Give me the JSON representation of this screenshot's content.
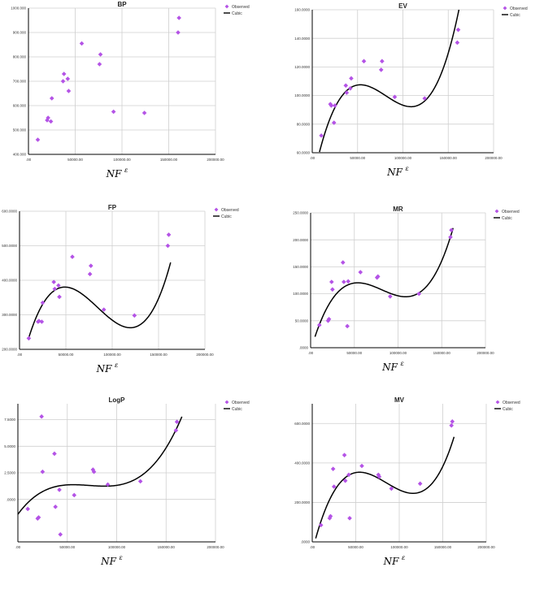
{
  "legend": {
    "observed_label": "Observed",
    "fit_label": "Cubic",
    "marker_color": "#b453e6",
    "line_color": "#000000"
  },
  "x_axis_label": "NF",
  "x_axis_superscript": "ε",
  "chart_data": [
    {
      "type": "scatter",
      "title": "BP",
      "xlim": [
        0,
        200000
      ],
      "ylim": [
        400,
        1000
      ],
      "xticks": [
        0,
        50000,
        100000,
        150000,
        200000
      ],
      "xtick_labels": [
        ".00",
        "50000.00",
        "100000.00",
        "150000.00",
        "200000.00"
      ],
      "yticks": [
        400,
        500,
        600,
        700,
        800,
        900,
        1000
      ],
      "ytick_labels": [
        "400.000",
        "500.000",
        "600.000",
        "700.000",
        "800.000",
        "900.000",
        "1000.000"
      ],
      "series": [
        {
          "name": "Observed",
          "x": [
            10000,
            20000,
            21000,
            24000,
            25000,
            37000,
            38000,
            42000,
            43000,
            57000,
            76000,
            77000,
            91000,
            124000,
            160000,
            161000
          ],
          "y": [
            460,
            540,
            550,
            535,
            630,
            700,
            730,
            710,
            660,
            855,
            770,
            810,
            575,
            570,
            900,
            960
          ]
        },
        {
          "name": "Cubic",
          "fit": "cubic",
          "x_range": [
            10000,
            163000
          ],
          "coefficients": [
            -0.01052,
            0.000262,
            -1.87e-09,
            4.04e-15
          ]
        }
      ]
    },
    {
      "type": "scatter",
      "title": "EV",
      "xlim": [
        0,
        200000
      ],
      "ylim": [
        60,
        160
      ],
      "xticks": [
        0,
        50000,
        100000,
        150000,
        200000
      ],
      "xtick_labels": [
        ".00",
        "50000.00",
        "100000.00",
        "150000.00",
        "200000.00"
      ],
      "yticks": [
        60,
        80,
        100,
        120,
        140,
        160
      ],
      "ytick_labels": [
        "60.0000",
        "80.0000",
        "100.0000",
        "120.0000",
        "140.0000",
        "160.0000"
      ],
      "series": [
        {
          "name": "Observed",
          "x": [
            10000,
            20000,
            21000,
            24000,
            25000,
            37000,
            38000,
            42000,
            43000,
            57000,
            76000,
            77000,
            91000,
            124000,
            160000,
            161000
          ],
          "y": [
            72,
            94,
            93,
            81,
            93,
            107,
            102,
            105,
            112,
            124,
            118,
            124,
            99,
            98,
            137,
            146
          ]
        },
        {
          "name": "Cubic",
          "fit": "cubic",
          "x_range": [
            8000,
            163000
          ],
          "coefficients": [
            38.45,
            0.003098,
            -4.33e-08,
            1.78e-13
          ]
        }
      ]
    },
    {
      "type": "scatter",
      "title": "FP",
      "xlim": [
        0,
        200000
      ],
      "ylim": [
        200,
        600
      ],
      "xticks": [
        0,
        50000,
        100000,
        150000,
        200000
      ],
      "xtick_labels": [
        ".00",
        "50000.00",
        "100000.00",
        "150000.00",
        "200000.00"
      ],
      "yticks": [
        200,
        300,
        400,
        500,
        600
      ],
      "ytick_labels": [
        "200.0000",
        "300.0000",
        "400.0000",
        "500.0000",
        "600.0000"
      ],
      "series": [
        {
          "name": "Observed",
          "x": [
            10000,
            20000,
            21000,
            24000,
            25000,
            37000,
            38000,
            42000,
            43000,
            57000,
            76000,
            77000,
            91000,
            124000,
            160000,
            161000
          ],
          "y": [
            232,
            280,
            282,
            280,
            335,
            395,
            375,
            385,
            352,
            468,
            418,
            442,
            315,
            298,
            500,
            532
          ]
        },
        {
          "name": "Cubic",
          "fit": "cubic",
          "x_range": [
            10000,
            163000
          ],
          "coefficients": [
            132.6,
            0.01173,
            -1.69e-07,
            6.69e-13
          ]
        }
      ]
    },
    {
      "type": "scatter",
      "title": "MR",
      "xlim": [
        0,
        200000
      ],
      "ylim": [
        0,
        250
      ],
      "xticks": [
        0,
        50000,
        100000,
        150000,
        200000
      ],
      "xtick_labels": [
        ".00",
        "50000.00",
        "100000.00",
        "150000.00",
        "200000.00"
      ],
      "yticks": [
        0,
        50,
        100,
        150,
        200,
        250
      ],
      "ytick_labels": [
        ".0000",
        "50.0000",
        "100.0000",
        "150.0000",
        "200.0000",
        "250.0000"
      ],
      "series": [
        {
          "name": "Observed",
          "x": [
            10000,
            20000,
            21000,
            24000,
            25000,
            37000,
            38000,
            42000,
            43000,
            57000,
            76000,
            77000,
            91000,
            124000,
            160000,
            161000
          ],
          "y": [
            42,
            50,
            53,
            122,
            108,
            158,
            122,
            40,
            123,
            140,
            130,
            132,
            95,
            100,
            205,
            218
          ]
        },
        {
          "name": "Cubic",
          "fit": "cubic",
          "x_range": [
            5000,
            163000
          ],
          "coefficients": [
            -5.75,
            0.00559,
            -7.74e-08,
            3.17e-13
          ]
        }
      ]
    },
    {
      "type": "scatter",
      "title": "LogP",
      "xlim": [
        0,
        200000
      ],
      "ylim": [
        -4,
        9
      ],
      "xticks": [
        0,
        50000,
        100000,
        150000,
        200000
      ],
      "xtick_labels": [
        ".00",
        "50000.00",
        "100000.00",
        "150000.00",
        "200000.00"
      ],
      "yticks": [
        0,
        2.5,
        5,
        7.5
      ],
      "ytick_labels": [
        ".0000",
        "2.5000",
        "5.0000",
        "7.5000"
      ],
      "series": [
        {
          "name": "Observed",
          "x": [
            10000,
            20000,
            21000,
            24000,
            25000,
            37000,
            38000,
            42000,
            43000,
            57000,
            76000,
            77000,
            91000,
            124000,
            160000,
            161000
          ],
          "y": [
            -0.9,
            -1.8,
            -1.7,
            7.8,
            2.6,
            4.3,
            -0.7,
            0.9,
            -3.3,
            0.4,
            2.8,
            2.6,
            1.4,
            1.7,
            6.5,
            7.3
          ]
        },
        {
          "name": "Cubic",
          "fit": "cubic",
          "x_range": [
            0,
            166000
          ],
          "coefficients": [
            -1.4,
            0.000126,
            -1.84e-09,
            8.52e-15
          ]
        }
      ]
    },
    {
      "type": "scatter",
      "title": "MV",
      "xlim": [
        0,
        200000
      ],
      "ylim": [
        0,
        700
      ],
      "xticks": [
        0,
        50000,
        100000,
        150000,
        200000
      ],
      "xtick_labels": [
        ".00",
        "50000.00",
        "100000.00",
        "150000.00",
        "200000.00"
      ],
      "yticks": [
        0,
        200,
        400,
        600
      ],
      "ytick_labels": [
        ".0000",
        "200.0000",
        "400.0000",
        "600.0000"
      ],
      "series": [
        {
          "name": "Observed",
          "x": [
            10000,
            20000,
            21000,
            24000,
            25000,
            37000,
            38000,
            42000,
            43000,
            57000,
            76000,
            77000,
            91000,
            124000,
            160000,
            161000
          ],
          "y": [
            85,
            120,
            130,
            370,
            280,
            440,
            310,
            340,
            120,
            385,
            340,
            330,
            270,
            295,
            590,
            610
          ]
        },
        {
          "name": "Cubic",
          "fit": "cubic",
          "x_range": [
            4000,
            163000
          ],
          "coefficients": [
            -48.28,
            0.01748,
            -2.36e-07,
            9.24e-13
          ]
        }
      ]
    }
  ]
}
